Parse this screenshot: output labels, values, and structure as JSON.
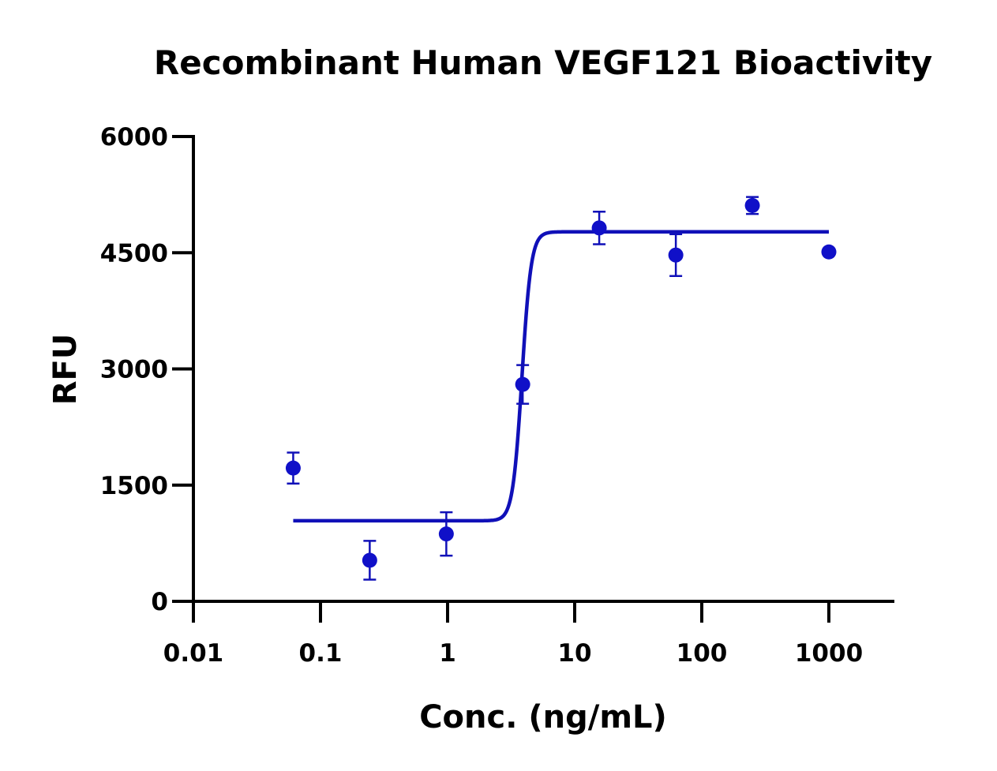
{
  "chart_data": {
    "type": "scatter",
    "title": "Recombinant Human VEGF121 Bioactivity",
    "xlabel": "Conc. (ng/mL)",
    "ylabel": "RFU",
    "xscale": "log",
    "xlim": [
      0.01,
      3000
    ],
    "ylim": [
      0,
      6000
    ],
    "x_ticks": [
      {
        "value": 0.01,
        "label": "0.01"
      },
      {
        "value": 0.1,
        "label": "0.1"
      },
      {
        "value": 1,
        "label": "1"
      },
      {
        "value": 10,
        "label": "10"
      },
      {
        "value": 100,
        "label": "100"
      },
      {
        "value": 1000,
        "label": "1000"
      }
    ],
    "y_ticks": [
      {
        "value": 0,
        "label": "0"
      },
      {
        "value": 1500,
        "label": "1500"
      },
      {
        "value": 3000,
        "label": "3000"
      },
      {
        "value": 4500,
        "label": "4500"
      },
      {
        "value": 6000,
        "label": "6000"
      }
    ],
    "points": [
      {
        "x": 0.061,
        "y": 1720,
        "err": 200
      },
      {
        "x": 0.244,
        "y": 530,
        "err": 250
      },
      {
        "x": 0.977,
        "y": 870,
        "err": 280
      },
      {
        "x": 3.9,
        "y": 2800,
        "err": 250
      },
      {
        "x": 15.6,
        "y": 4820,
        "err": 210
      },
      {
        "x": 62.5,
        "y": 4470,
        "err": 270
      },
      {
        "x": 250,
        "y": 5110,
        "err": 110
      },
      {
        "x": 1000,
        "y": 4510,
        "err": 0
      }
    ],
    "fit": {
      "model": "4PL",
      "bottom": 1040,
      "top": 4770,
      "ec50": 3.85,
      "hill": 12,
      "x_range": [
        0.061,
        1000
      ]
    },
    "grid": false,
    "legend": "none",
    "colors": {
      "series": "#1010c8",
      "fit": "#1010b8",
      "axes": "#000000"
    }
  }
}
